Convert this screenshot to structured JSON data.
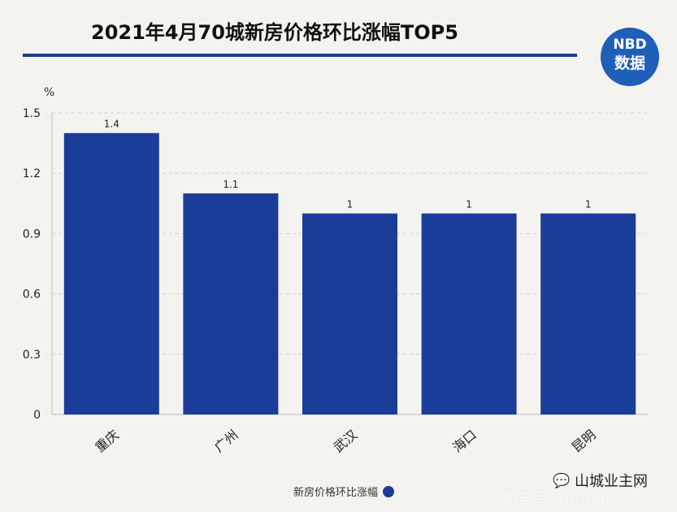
{
  "header": {
    "title": "2021年4月70城新房价格环比涨幅TOP5",
    "logo": {
      "top": "NBD",
      "bottom": "数据"
    }
  },
  "chart_data": {
    "type": "bar",
    "title": "2021年4月70城新房价格环比涨幅TOP5",
    "unit": "%",
    "categories": [
      "重庆",
      "广州",
      "武汉",
      "海口",
      "昆明"
    ],
    "series": [
      {
        "name": "新房价格环比涨幅",
        "values": [
          1.4,
          1.1,
          1,
          1,
          1
        ]
      }
    ],
    "value_labels": [
      "1.4",
      "1.1",
      "1",
      "1",
      "1"
    ],
    "y_ticks": [
      "0",
      "0.3",
      "0.6",
      "0.9",
      "1.2",
      "1.5"
    ],
    "ylim": [
      0,
      1.5
    ],
    "grid": true,
    "legend_position": "bottom-center",
    "colors": {
      "bar": "#1a3d9a",
      "title_rule": "#153e8c",
      "logo": "#1f5fb8",
      "background": "#f5f3ef"
    }
  },
  "footer": {
    "source_text": "山城业主网",
    "watermark": "快传号/知讯网"
  },
  "icons": {
    "logo": "nbd-logo-icon",
    "source": "speech-bubble-icon"
  }
}
